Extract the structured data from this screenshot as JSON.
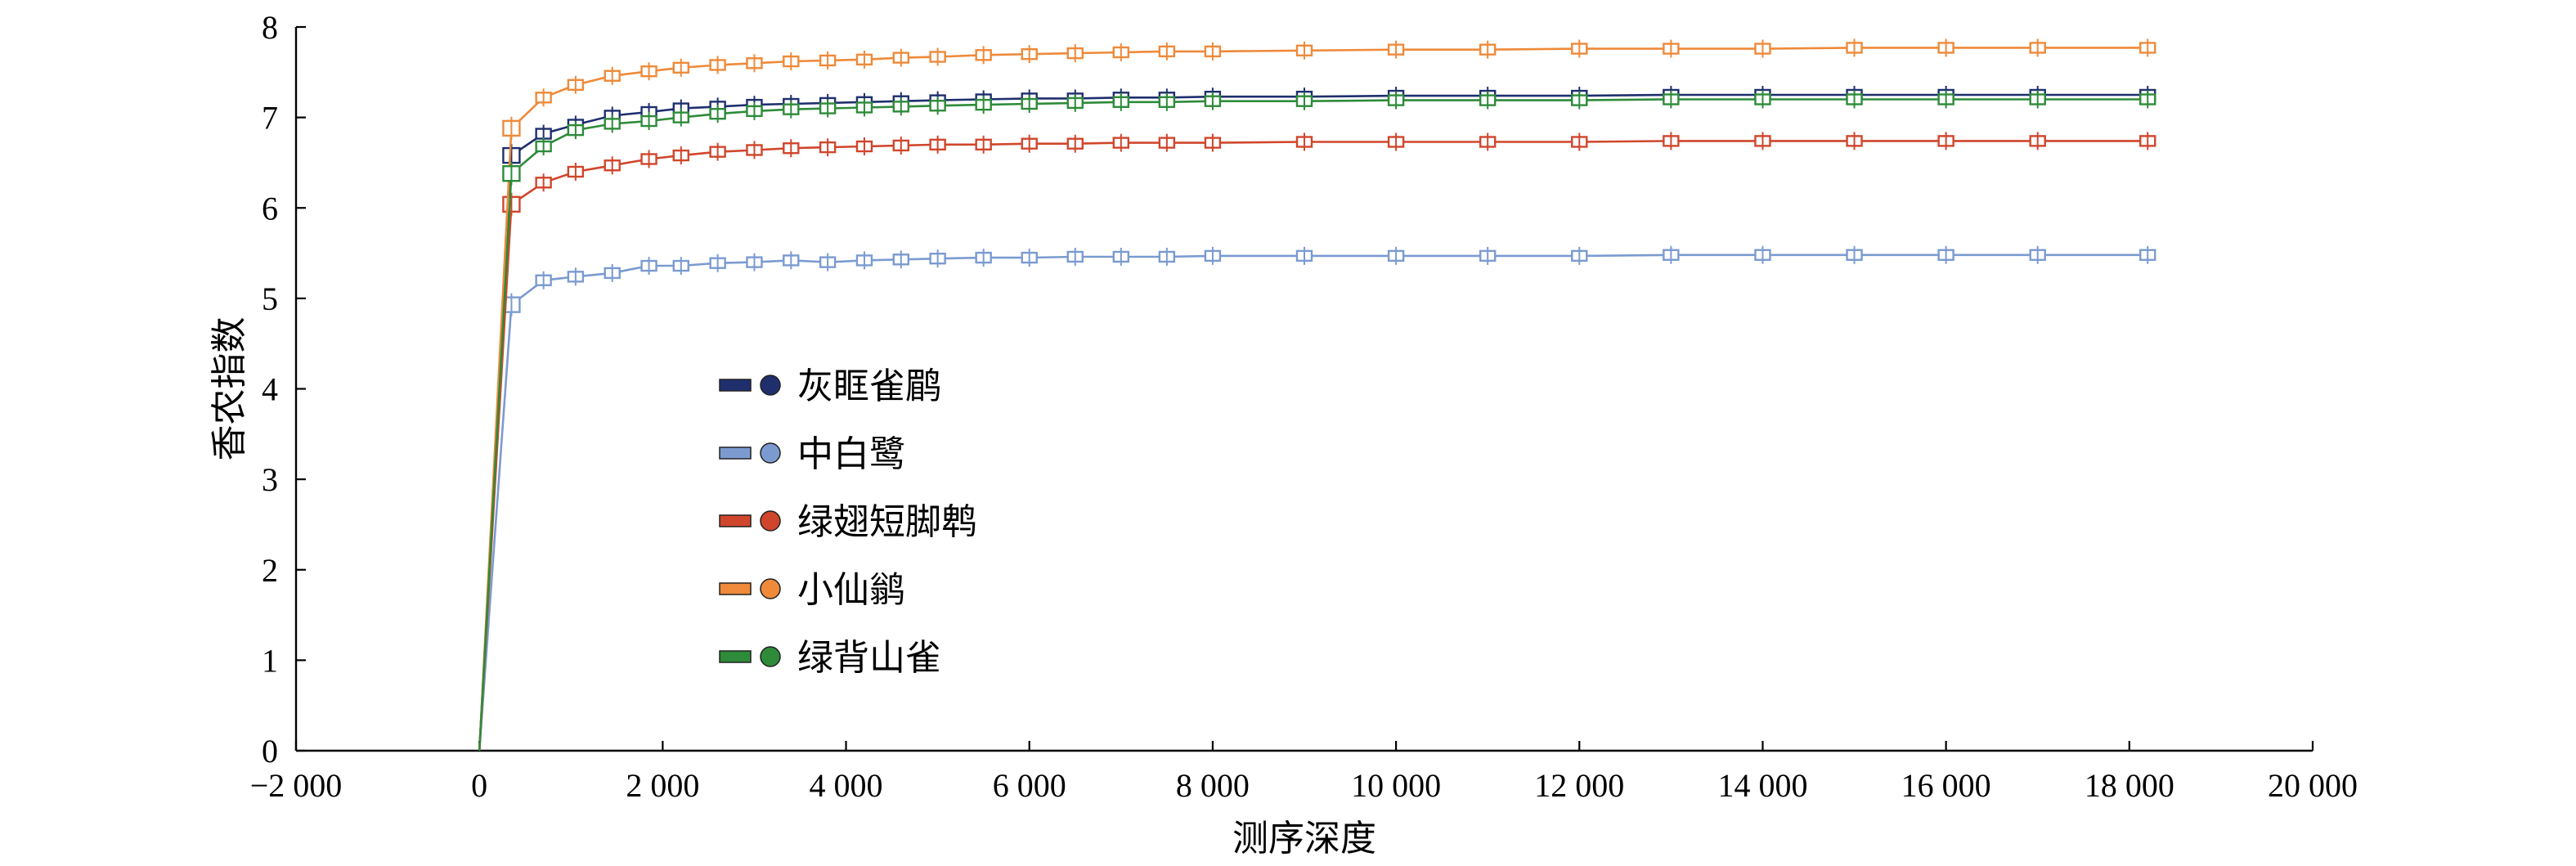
{
  "chart_data": {
    "type": "line",
    "xlabel": "测序深度",
    "ylabel": "香农指数",
    "xlim": [
      -2000,
      20000
    ],
    "ylim": [
      0,
      8
    ],
    "xticks": [
      -2000,
      0,
      2000,
      4000,
      6000,
      8000,
      10000,
      12000,
      14000,
      16000,
      18000,
      20000
    ],
    "xtick_labels": [
      "−2 000",
      "0",
      "2 000",
      "4 000",
      "6 000",
      "8 000",
      "10 000",
      "12 000",
      "14 000",
      "16 000",
      "18 000",
      "20 000"
    ],
    "yticks": [
      0,
      1,
      2,
      3,
      4,
      5,
      6,
      7,
      8
    ],
    "ytick_labels": [
      "0",
      "1",
      "2",
      "3",
      "4",
      "5",
      "6",
      "7",
      "8"
    ],
    "legend_position": "center-left",
    "x": [
      0,
      350,
      700,
      1050,
      1450,
      1850,
      2200,
      2600,
      3000,
      3400,
      3800,
      4200,
      4600,
      5000,
      5500,
      6000,
      6500,
      7000,
      7500,
      8000,
      9000,
      10000,
      11000,
      12000,
      13000,
      14000,
      15000,
      16000,
      17000,
      18200
    ],
    "series": [
      {
        "name": "灰眶雀鹛",
        "color": "#1f2f6e",
        "values": [
          0,
          6.58,
          6.82,
          6.92,
          7.02,
          7.06,
          7.1,
          7.12,
          7.14,
          7.15,
          7.16,
          7.17,
          7.18,
          7.19,
          7.2,
          7.21,
          7.21,
          7.22,
          7.22,
          7.23,
          7.23,
          7.24,
          7.24,
          7.24,
          7.25,
          7.25,
          7.25,
          7.25,
          7.25,
          7.25
        ]
      },
      {
        "name": "中白鹭",
        "color": "#7b9bd0",
        "values": [
          0,
          4.93,
          5.2,
          5.24,
          5.28,
          5.36,
          5.36,
          5.39,
          5.4,
          5.42,
          5.4,
          5.42,
          5.43,
          5.44,
          5.45,
          5.45,
          5.46,
          5.46,
          5.46,
          5.47,
          5.47,
          5.47,
          5.47,
          5.47,
          5.48,
          5.48,
          5.48,
          5.48,
          5.48,
          5.48
        ]
      },
      {
        "name": "绿翅短脚鹎",
        "color": "#d0462c",
        "values": [
          0,
          6.04,
          6.28,
          6.4,
          6.47,
          6.54,
          6.58,
          6.62,
          6.64,
          6.66,
          6.67,
          6.68,
          6.69,
          6.7,
          6.7,
          6.71,
          6.71,
          6.72,
          6.72,
          6.72,
          6.73,
          6.73,
          6.73,
          6.73,
          6.74,
          6.74,
          6.74,
          6.74,
          6.74,
          6.74
        ]
      },
      {
        "name": "小仙鹟",
        "color": "#ee8a3a",
        "values": [
          0,
          6.88,
          7.22,
          7.36,
          7.46,
          7.51,
          7.55,
          7.58,
          7.6,
          7.62,
          7.63,
          7.64,
          7.66,
          7.67,
          7.69,
          7.7,
          7.71,
          7.72,
          7.73,
          7.73,
          7.74,
          7.75,
          7.75,
          7.76,
          7.76,
          7.76,
          7.77,
          7.77,
          7.77,
          7.77
        ]
      },
      {
        "name": "绿背山雀",
        "color": "#2e8b3a",
        "values": [
          0,
          6.38,
          6.68,
          6.86,
          6.93,
          6.96,
          7.0,
          7.04,
          7.07,
          7.09,
          7.1,
          7.11,
          7.12,
          7.13,
          7.14,
          7.15,
          7.16,
          7.17,
          7.17,
          7.18,
          7.18,
          7.19,
          7.19,
          7.19,
          7.2,
          7.2,
          7.2,
          7.2,
          7.2,
          7.2
        ]
      }
    ]
  }
}
